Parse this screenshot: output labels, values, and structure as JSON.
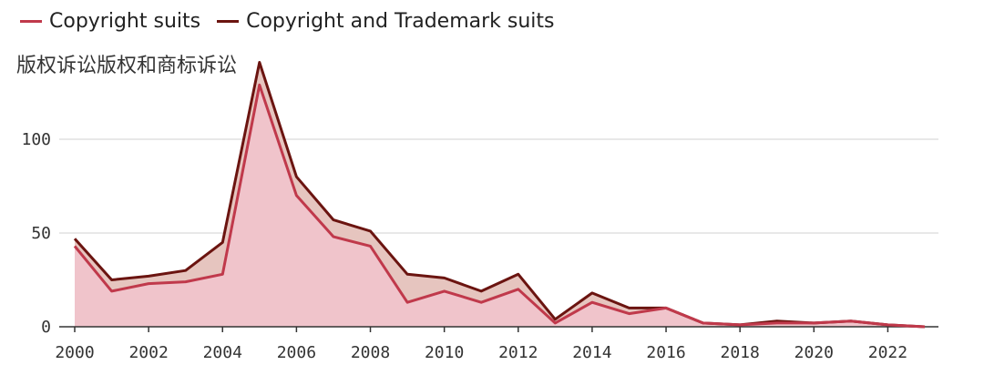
{
  "chart_data": {
    "type": "area",
    "title": "",
    "subtitle": "版权诉讼版权和商标诉讼",
    "xlabel": "",
    "ylabel": "",
    "xlim": [
      2000,
      2023
    ],
    "ylim": [
      0,
      140
    ],
    "yticks": [
      0,
      50,
      100
    ],
    "xticks": [
      2000,
      2002,
      2004,
      2006,
      2008,
      2010,
      2012,
      2014,
      2016,
      2018,
      2020,
      2022
    ],
    "x": [
      2000,
      2001,
      2002,
      2003,
      2004,
      2005,
      2006,
      2007,
      2008,
      2009,
      2010,
      2011,
      2012,
      2013,
      2014,
      2015,
      2016,
      2017,
      2018,
      2019,
      2020,
      2021,
      2022,
      2023
    ],
    "series": [
      {
        "name": "Copyright suits",
        "color": "#c0394b",
        "fill": "#f0c4cb",
        "values": [
          43,
          19,
          23,
          24,
          28,
          129,
          70,
          48,
          43,
          13,
          19,
          13,
          20,
          2,
          13,
          7,
          10,
          2,
          1,
          2,
          2,
          3,
          1,
          0
        ]
      },
      {
        "name": "Copyright and Trademark suits",
        "color": "#6b1410",
        "fill": "#e6c5bf",
        "values": [
          47,
          25,
          27,
          30,
          45,
          141,
          80,
          57,
          51,
          28,
          26,
          19,
          28,
          4,
          18,
          10,
          10,
          2,
          1,
          3,
          2,
          3,
          1,
          0
        ]
      }
    ],
    "legend_position": "top-left",
    "grid": true
  }
}
